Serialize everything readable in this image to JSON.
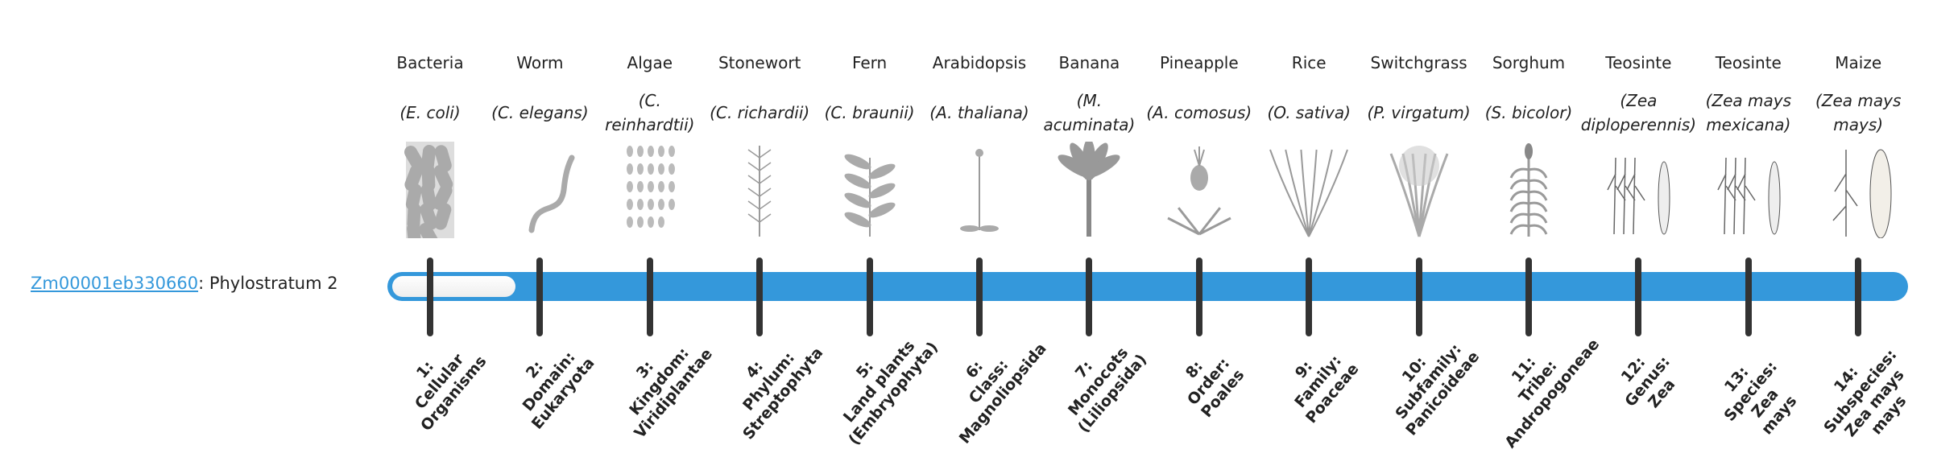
{
  "gene": {
    "id": "Zm00001eb330660",
    "suffix": ": Phylostratum 2"
  },
  "phylostratum": 2,
  "colors": {
    "bar": "#3498db",
    "tick": "#333333",
    "link": "#3498db"
  },
  "strata": [
    {
      "common": "Bacteria",
      "sci": "(E. coli)",
      "image": "bacteria",
      "label": "1:\nCellular\nOrganisms"
    },
    {
      "common": "Worm",
      "sci": "(C. elegans)",
      "image": "worm",
      "label": "2:\nDomain:\nEukaryota"
    },
    {
      "common": "Algae",
      "sci": "(C. reinhardtii)",
      "image": "algae",
      "label": "3:\nKingdom:\nViridiplantae"
    },
    {
      "common": "Stonewort",
      "sci": "(C. richardii)",
      "image": "stonewort",
      "label": "4:\nPhylum:\nStreptophyta"
    },
    {
      "common": "Fern",
      "sci": "(C. braunii)",
      "image": "fern",
      "label": "5:\nLand plants\n(Embryophyta)"
    },
    {
      "common": "Arabidopsis",
      "sci": "(A. thaliana)",
      "image": "arabidopsis",
      "label": "6:\nClass:\nMagnoliopsida"
    },
    {
      "common": "Banana",
      "sci": "(M. acuminata)",
      "image": "banana",
      "label": "7:\nMonocots\n(Liliopsida)"
    },
    {
      "common": "Pineapple",
      "sci": "(A. comosus)",
      "image": "pineapple",
      "label": "8:\nOrder:\nPoales"
    },
    {
      "common": "Rice",
      "sci": "(O. sativa)",
      "image": "rice",
      "label": "9:\nFamily:\nPoaceae"
    },
    {
      "common": "Switchgrass",
      "sci": "(P. virgatum)",
      "image": "switchgrass",
      "label": "10:\nSubfamily:\nPanicoideae"
    },
    {
      "common": "Sorghum",
      "sci": "(S. bicolor)",
      "image": "sorghum",
      "label": "11:\nTribe:\nAndropogoneae"
    },
    {
      "common": "Teosinte",
      "sci": "(Zea diploperennis)",
      "image": "teosinte",
      "label": "12:\nGenus:\nZea"
    },
    {
      "common": "Teosinte",
      "sci": "(Zea mays mexicana)",
      "image": "teosinte",
      "label": "13:\nSpecies:\nZea\nmays"
    },
    {
      "common": "Maize",
      "sci": "(Zea mays mays)",
      "image": "maize",
      "label": "14:\nSubspecies:\nZea mays\nmays"
    }
  ]
}
